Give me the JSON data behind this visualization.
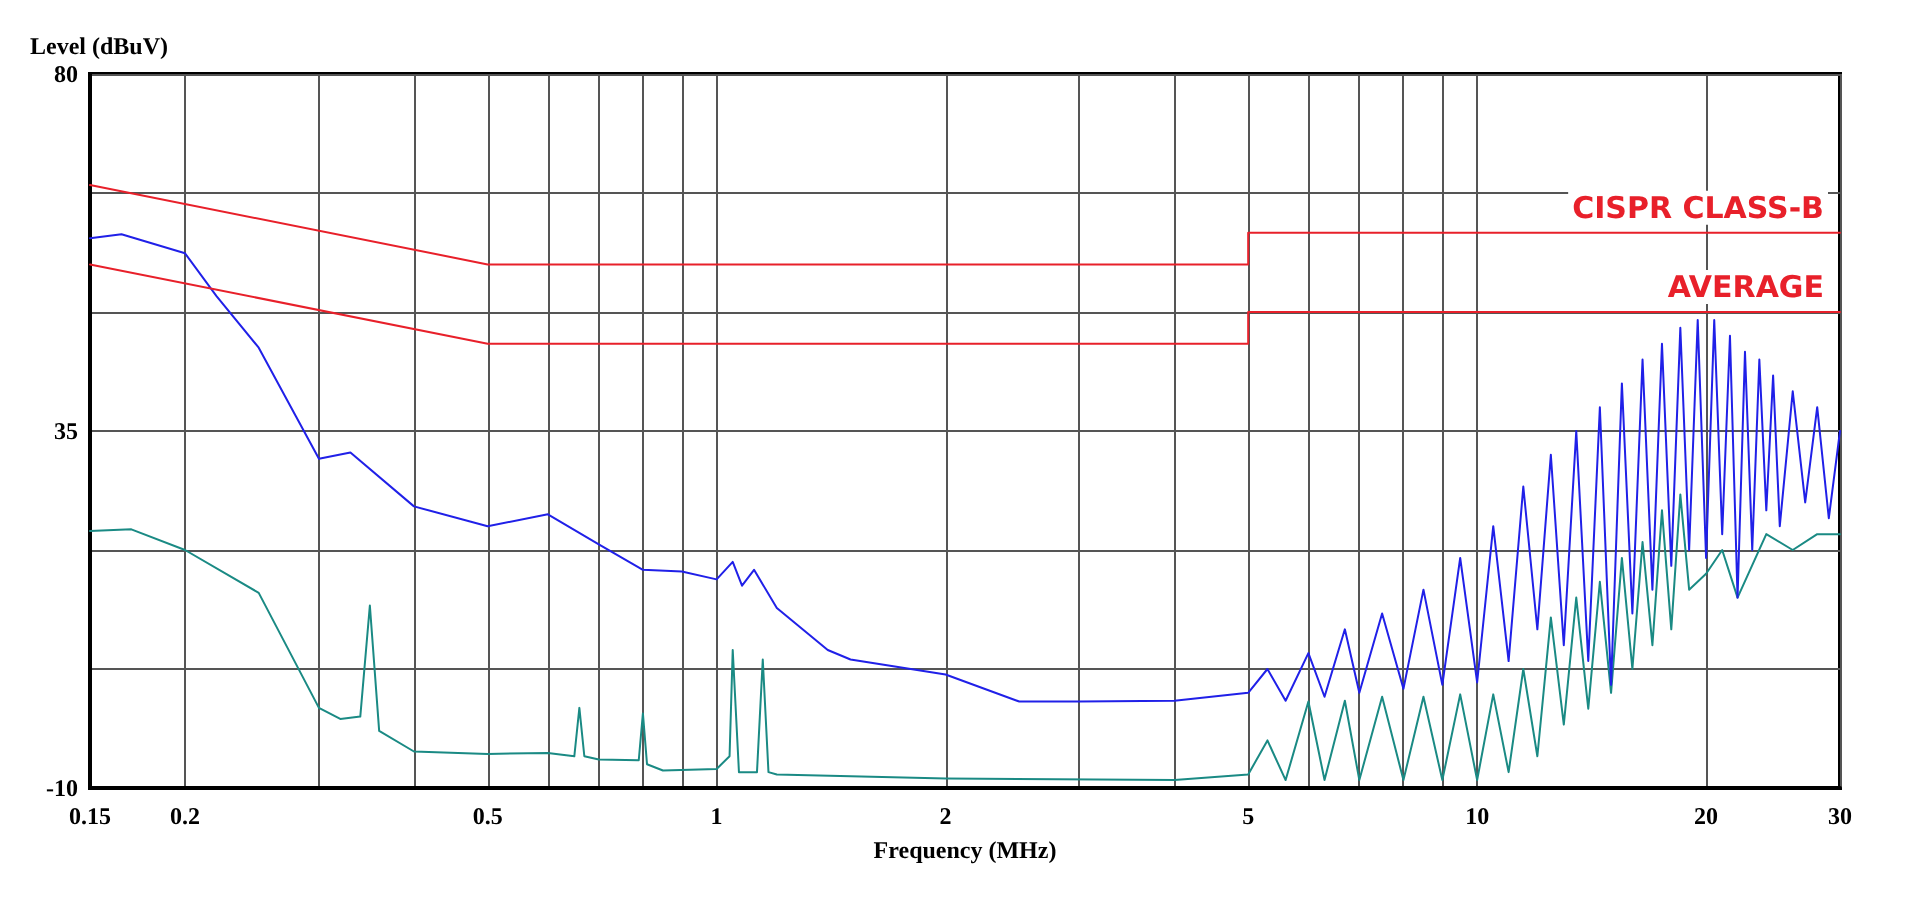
{
  "chart_data": {
    "type": "line",
    "xlabel": "Frequency (MHz)",
    "ylabel": "Level (dBuV)",
    "log": "x",
    "xlim": [
      0.15,
      30
    ],
    "ylim": [
      -10,
      80
    ],
    "xticks": [
      0.15,
      0.2,
      {
        "value": 0.3,
        "label": null
      },
      {
        "value": 0.4,
        "label": null
      },
      0.5,
      {
        "value": 0.6,
        "label": null
      },
      {
        "value": 0.7,
        "label": null
      },
      {
        "value": 0.8,
        "label": null
      },
      {
        "value": 0.9,
        "label": null
      },
      1,
      2,
      {
        "value": 3,
        "label": null
      },
      {
        "value": 4,
        "label": null
      },
      5,
      {
        "value": 6,
        "label": null
      },
      {
        "value": 7,
        "label": null
      },
      {
        "value": 8,
        "label": null
      },
      {
        "value": 9,
        "label": null
      },
      10,
      20,
      30
    ],
    "yticks": [
      -10,
      {
        "value": 5,
        "label": null
      },
      {
        "value": 20,
        "label": null
      },
      35,
      {
        "value": 50,
        "label": null
      },
      {
        "value": 65,
        "label": null
      },
      80
    ],
    "grid": true,
    "legend": false,
    "marker": "none",
    "line_style": "solid",
    "series": [
      {
        "color": "#1a8a84",
        "x": [
          0.15,
          0.17,
          0.2,
          0.25,
          0.3,
          0.32,
          0.34,
          0.35,
          0.36,
          0.4,
          0.5,
          0.6,
          0.65,
          0.66,
          0.67,
          0.7,
          0.79,
          0.8,
          0.81,
          0.85,
          1.0,
          1.04,
          1.05,
          1.07,
          1.13,
          1.15,
          1.17,
          1.2,
          2,
          4,
          5,
          5.3,
          5.6,
          6,
          6.3,
          6.7,
          7,
          7.5,
          8,
          8.5,
          9,
          9.5,
          10,
          10.5,
          11,
          11.5,
          12,
          12.5,
          13,
          13.5,
          14,
          14.5,
          15,
          15.5,
          16,
          16.5,
          17,
          17.5,
          18,
          18.5,
          19,
          20,
          21,
          22,
          24,
          26,
          28,
          30
        ],
        "values": [
          22.4,
          22.6,
          20,
          14.6,
          0.1,
          -1.3,
          -1,
          13,
          -2.8,
          -5.4,
          -5.7,
          -5.6,
          -6,
          0.1,
          -6,
          -6.4,
          -6.5,
          -0.6,
          -7,
          -7.8,
          -7.6,
          -6,
          7.4,
          -8,
          -8,
          6.2,
          -8,
          -8.3,
          -8.8,
          -9,
          -8.3,
          -4,
          -9,
          0.9,
          -9,
          1,
          -9,
          1.5,
          -9,
          1.5,
          -9,
          1.8,
          -9,
          1.8,
          -8,
          5,
          -6,
          11.5,
          -2,
          14,
          0,
          16,
          2,
          19,
          5,
          21,
          8,
          25,
          10,
          27,
          15,
          17,
          20,
          14,
          22,
          20,
          22,
          22
        ]
      },
      {
        "color": "#2020e8",
        "x": [
          0.15,
          0.165,
          0.2,
          0.22,
          0.25,
          0.28,
          0.3,
          0.33,
          0.4,
          0.5,
          0.6,
          0.7,
          0.8,
          0.9,
          1.0,
          1.05,
          1.08,
          1.12,
          1.2,
          1.4,
          1.5,
          2,
          2.5,
          3,
          4,
          5,
          5.3,
          5.6,
          6,
          6.3,
          6.7,
          7,
          7.5,
          8,
          8.5,
          9,
          9.5,
          10,
          10.5,
          11,
          11.5,
          12,
          12.5,
          13,
          13.5,
          14,
          14.5,
          15,
          15.5,
          16,
          16.5,
          17,
          17.5,
          18,
          18.5,
          19,
          19.5,
          20,
          20.5,
          21,
          21.5,
          22,
          22.5,
          23,
          23.5,
          24,
          24.5,
          25,
          26,
          27,
          28,
          29,
          30
        ],
        "values": [
          59.3,
          59.8,
          57.4,
          52,
          45.5,
          36.8,
          31.5,
          32.3,
          25.5,
          23,
          24.5,
          20.7,
          17.5,
          17.3,
          16.3,
          18.5,
          15.5,
          17.5,
          12.7,
          7.4,
          6.2,
          4.3,
          0.9,
          0.9,
          1,
          2,
          5,
          1,
          7,
          1.5,
          10,
          2,
          12,
          2.5,
          15,
          3,
          19,
          3.3,
          23,
          6,
          28,
          10,
          32,
          8,
          35,
          6,
          38,
          3,
          41,
          12,
          44,
          15,
          46,
          18,
          48,
          20,
          49,
          19,
          49,
          22,
          47,
          14,
          45,
          20,
          44,
          25,
          42,
          23,
          40,
          26,
          38,
          24,
          35
        ]
      },
      {
        "name": "CISPR CLASS-B",
        "color": "#e8202a",
        "x": [
          0.15,
          0.5,
          5,
          5,
          30
        ],
        "values": [
          66,
          56,
          56,
          60,
          60
        ]
      },
      {
        "name": "AVERAGE",
        "color": "#e8202a",
        "x": [
          0.15,
          0.5,
          5,
          5,
          30
        ],
        "values": [
          56,
          46,
          46,
          50,
          50
        ]
      }
    ]
  }
}
